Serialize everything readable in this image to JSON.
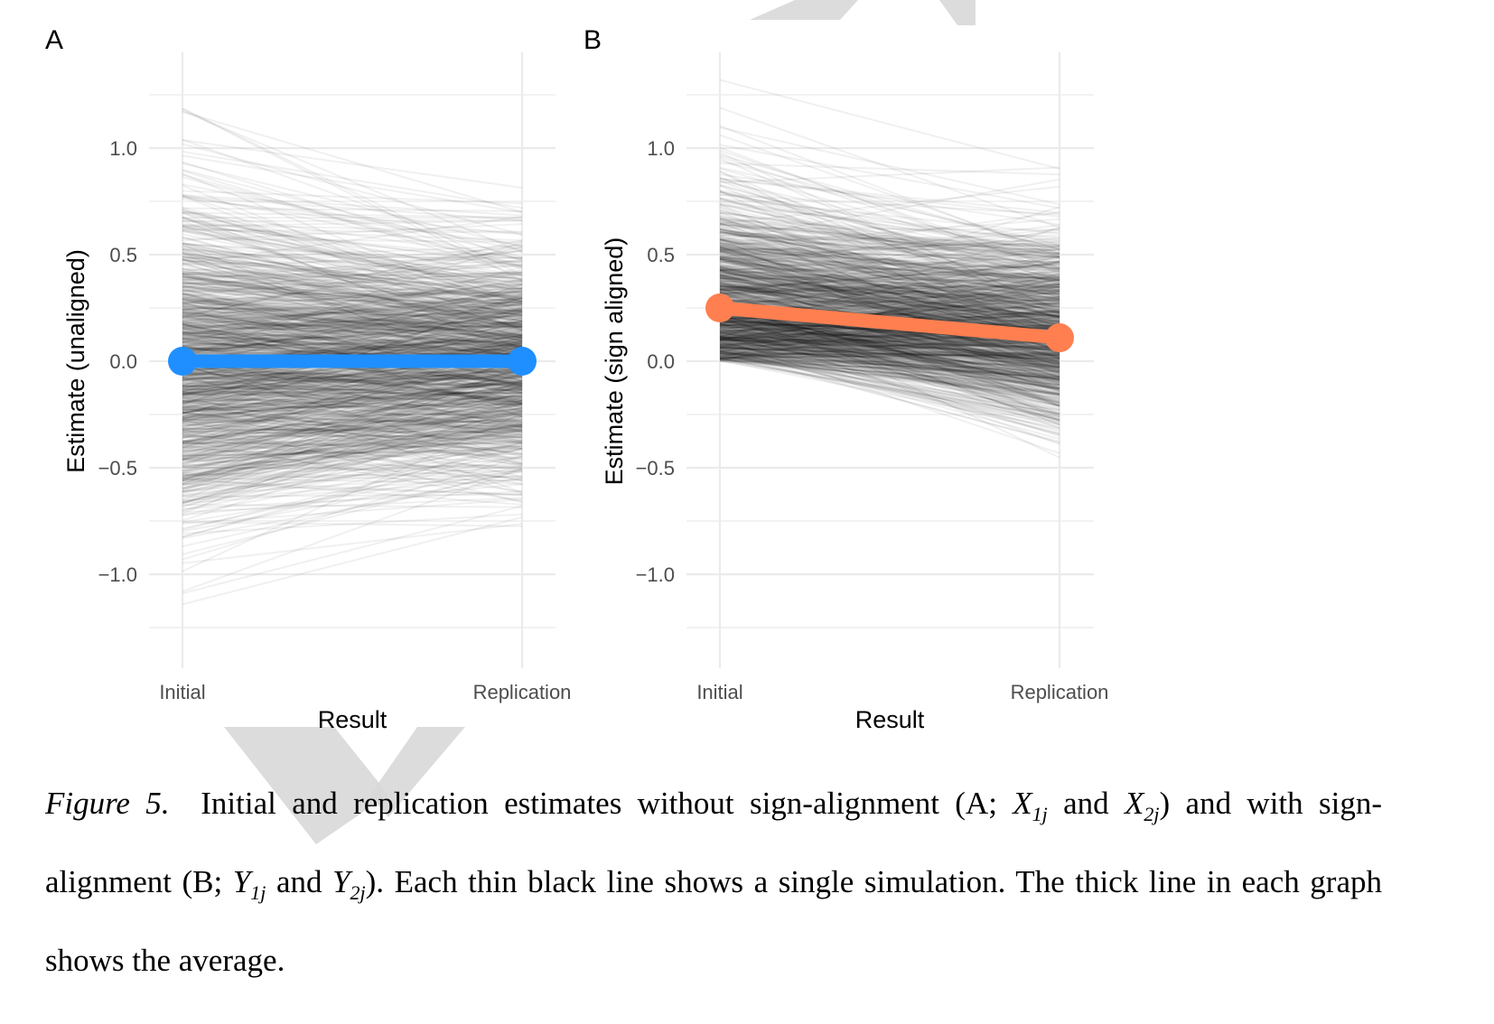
{
  "panels": {
    "a": {
      "label": "A"
    },
    "b": {
      "label": "B"
    }
  },
  "caption": {
    "figure_label": "Figure 5",
    "text_1": "Initial and replication estimates without sign-alignment (A; ",
    "x1": "X",
    "x1_sub": "1j",
    "and_1": " and ",
    "x2": "X",
    "x2_sub": "2j",
    "text_2": ") and with sign-alignment (B; ",
    "y1": "Y",
    "y1_sub": "1j",
    "and_2": " and ",
    "y2": "Y",
    "y2_sub": "2j",
    "text_3": "). Each thin black line shows a single simulation. The thick line in each graph shows the average."
  },
  "colors": {
    "panel_a_mean": "#1f8fff",
    "panel_b_mean": "#ff7f50",
    "simulation_lines": "#000000",
    "grid": "#ebebeb"
  },
  "chart_data": [
    {
      "type": "line",
      "panel": "A",
      "title": "",
      "xlabel": "Result",
      "ylabel": "Estimate (unaligned)",
      "categories": [
        "Initial",
        "Replication"
      ],
      "ylim": [
        -1.4,
        1.4
      ],
      "yticks": [
        1.0,
        0.5,
        0.0,
        -0.5,
        -1.0
      ],
      "ytick_labels": [
        "1.0",
        "0.5",
        "0.0",
        "−0.5",
        "−1.0"
      ],
      "grid": true,
      "simulation_lines": {
        "count": 1000,
        "description_of_spread": {
          "initial_range": [
            -1.33,
            1.3
          ],
          "replication_range": [
            -1.05,
            0.9
          ]
        },
        "opacity": 0.06
      },
      "series": [
        {
          "values": [
            0.0,
            0.0
          ]
        }
      ]
    },
    {
      "type": "line",
      "panel": "B",
      "title": "",
      "xlabel": "Result",
      "ylabel": "Estimate (sign aligned)",
      "categories": [
        "Initial",
        "Replication"
      ],
      "ylim": [
        -1.4,
        1.4
      ],
      "yticks": [
        1.0,
        0.5,
        0.0,
        -0.5,
        -1.0
      ],
      "ytick_labels": [
        "1.0",
        "0.5",
        "0.0",
        "−0.5",
        "−1.0"
      ],
      "grid": true,
      "simulation_lines": {
        "count": 1000,
        "initial_range": [
          0.0,
          1.32
        ],
        "replication_range": [
          -0.75,
          1.05
        ],
        "opacity": 0.06
      },
      "series": [
        {
          "values": [
            0.25,
            0.11
          ]
        }
      ]
    }
  ]
}
